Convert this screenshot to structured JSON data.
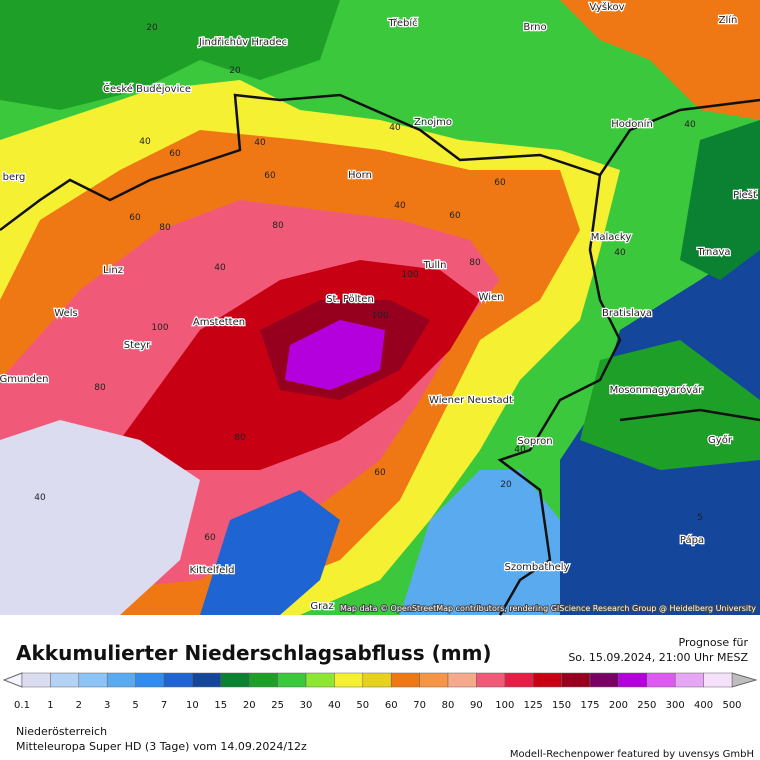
{
  "map": {
    "cities": [
      "Třebíč",
      "Brno",
      "Vyškov",
      "Zlín",
      "Jindřichův Hradec",
      "České Budějovice",
      "Znojmo",
      "Hodonín",
      "Horn",
      "berg",
      "Piešť",
      "Malacky",
      "Trnava",
      "Linz",
      "Tulln",
      "St. Pölten",
      "Wien",
      "Wels",
      "Amstetten",
      "Bratislava",
      "Steyr",
      "Gmunden",
      "Wiener Neustadt",
      "Mosonmagyaróvár",
      "Sopron",
      "Győr",
      "Pápa",
      "Kittelfeld",
      "Szombathely",
      "Graz"
    ],
    "contour_labels": [
      "20",
      "20",
      "40",
      "40",
      "60",
      "60",
      "80",
      "80",
      "100",
      "100",
      "40",
      "60",
      "80",
      "100",
      "40",
      "60",
      "80",
      "60",
      "40",
      "20",
      "40",
      "60",
      "80",
      "40",
      "5",
      "40",
      "40",
      "60"
    ],
    "attribution": "Map data © OpenStreetMap contributors, rendering GIScience Research Group @ Heidelberg University"
  },
  "header": {
    "title": "Akkumulierter Niederschlagsabfluss (mm)",
    "forecast_label": "Prognose für",
    "forecast_time": "So. 15.09.2024, 21:00 Uhr MESZ"
  },
  "legend": {
    "labels": [
      "0.1",
      "1",
      "2",
      "3",
      "5",
      "7",
      "10",
      "15",
      "20",
      "25",
      "30",
      "40",
      "50",
      "60",
      "70",
      "80",
      "90",
      "100",
      "125",
      "150",
      "175",
      "200",
      "250",
      "300",
      "400",
      "500"
    ],
    "colors": [
      "#dcdcf0",
      "#b4d2f5",
      "#8cc3f5",
      "#5aaaf0",
      "#328cf0",
      "#1e64d2",
      "#14469b",
      "#0a8232",
      "#1ea028",
      "#3cc83c",
      "#8ce632",
      "#f5f032",
      "#e6d21e",
      "#f07814",
      "#f59646",
      "#f5aa8c",
      "#f05a78",
      "#e61e46",
      "#c80014",
      "#96001e",
      "#780064",
      "#b400dc",
      "#dc5af0",
      "#e6a5f5",
      "#f5e1fa"
    ],
    "under_color": "#f5f5ff",
    "over_color": "#bebebe"
  },
  "footer": {
    "region": "Niederösterreich",
    "model": "Mitteleuropa Super HD (3 Tage) vom 14.09.2024/12z",
    "credit": "Modell-Rechenpower featured by uvensys GmbH"
  }
}
